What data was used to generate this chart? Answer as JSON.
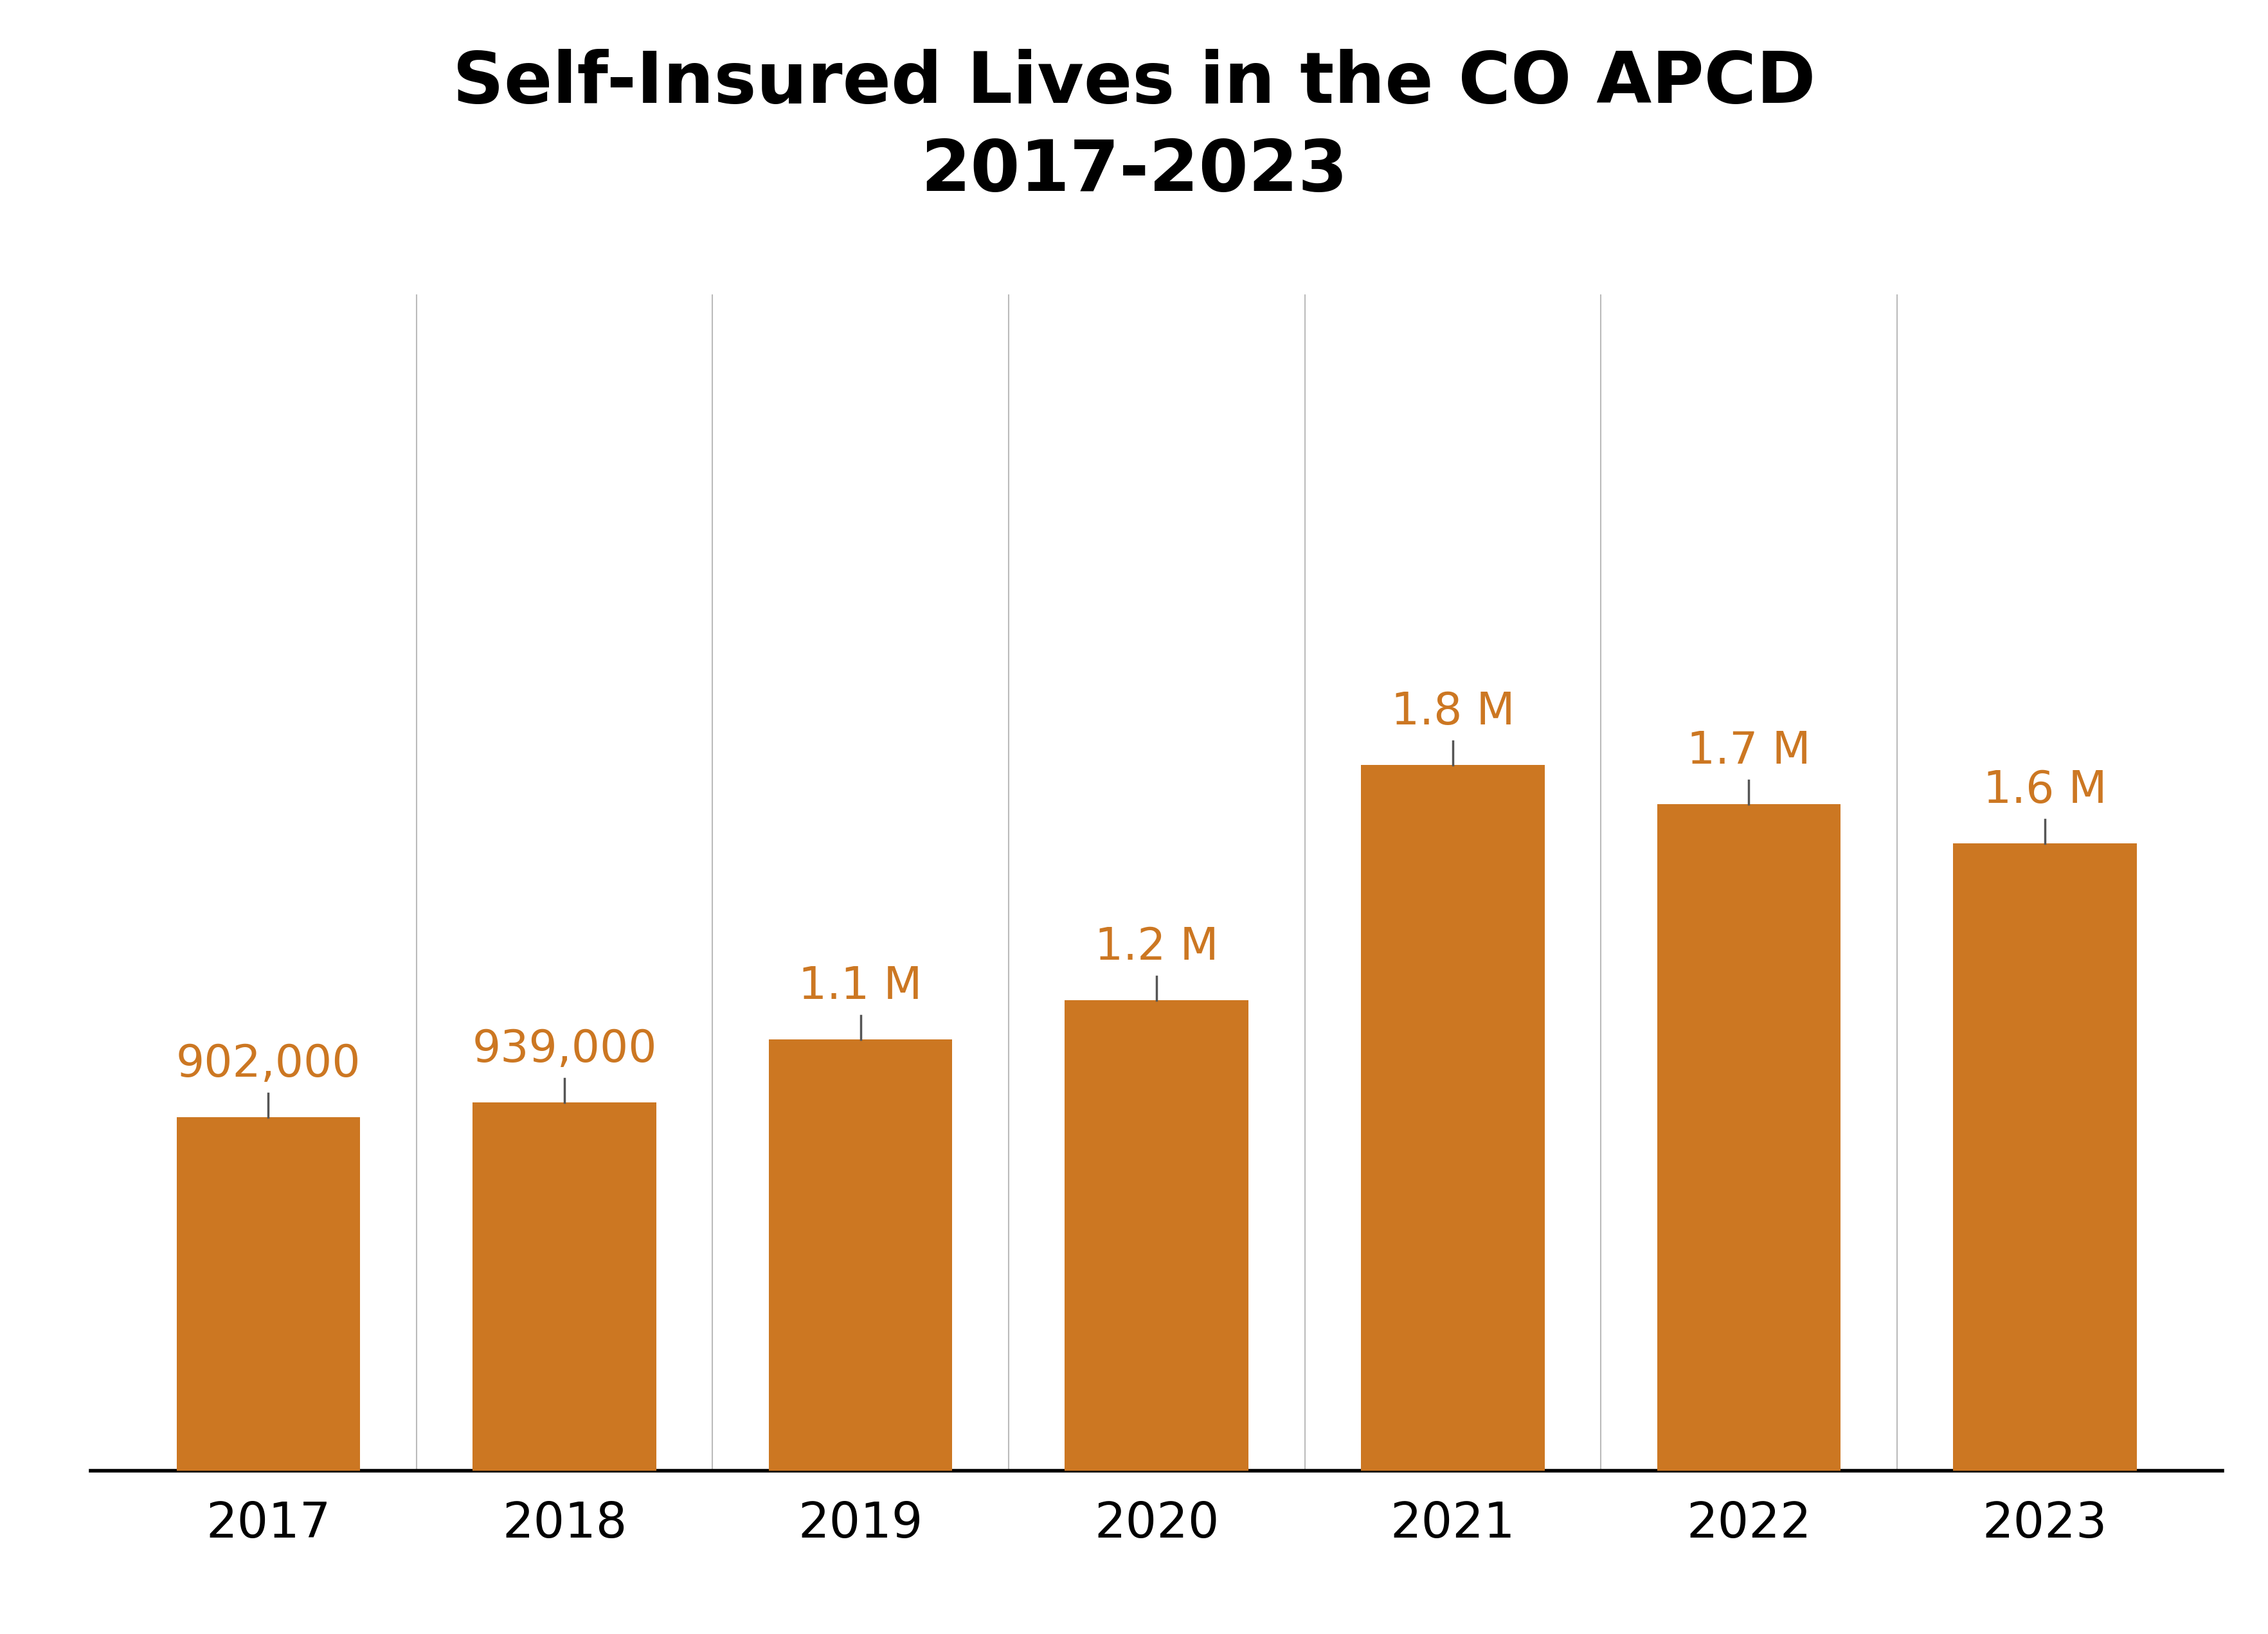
{
  "title_line1": "Self-Insured Lives in the CO APCD",
  "title_line2": "2017-2023",
  "categories": [
    "2017",
    "2018",
    "2019",
    "2020",
    "2021",
    "2022",
    "2023"
  ],
  "values": [
    902000,
    939000,
    1100000,
    1200000,
    1800000,
    1700000,
    1600000
  ],
  "labels": [
    "902,000",
    "939,000",
    "1.1 M",
    "1.2 M",
    "1.8 M",
    "1.7 M",
    "1.6 M"
  ],
  "bar_color": "#CC7722",
  "background_color": "#ffffff",
  "title_color": "#000000",
  "label_color": "#CC7722",
  "tick_label_color": "#000000",
  "grid_color": "#bbbbbb",
  "title_fontsize": 80,
  "label_fontsize": 50,
  "tick_fontsize": 55,
  "ylim": [
    0,
    3000000
  ],
  "bar_width": 0.62
}
